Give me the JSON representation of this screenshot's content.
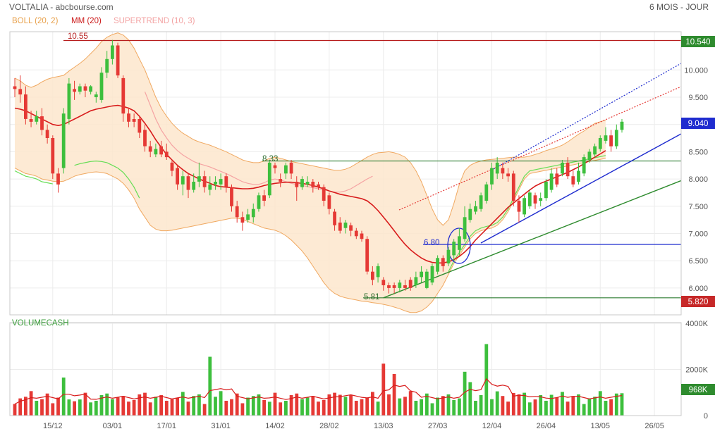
{
  "header": {
    "title": "VOLTALIA - abcbourse.com",
    "period": "6 MOIS - JOUR"
  },
  "legend": {
    "boll": "BOLL (20, 2)",
    "mm": "MM (20)",
    "supertrend": "SUPERTREND (10, 3)",
    "volume": "VOLUMECASH"
  },
  "colors": {
    "up": "#3dbf3d",
    "down": "#e53935",
    "boll_fill": "#fde6cc",
    "boll_line": "#f0a860",
    "mm": "#d81b1b",
    "supertrend_up": "#66dd55",
    "supertrend_down": "#f5a3a3",
    "hline_red": "#b71c1c",
    "hline_green": "#2e7d32",
    "trend_blue": "#1f2ccf",
    "trend_green": "#2e8b2e",
    "badge_green": "#2e8b2e",
    "badge_blue": "#1f2ccf",
    "badge_red": "#c62828"
  },
  "chart_data": [
    {
      "type": "candlestick",
      "x_tick_labels": [
        "15/12",
        "03/01",
        "17/01",
        "31/01",
        "14/02",
        "28/02",
        "13/03",
        "27/03",
        "12/04",
        "26/04",
        "13/05",
        "26/05"
      ],
      "y_tick_labels": [
        "6.000",
        "6.500",
        "7.000",
        "7.500",
        "8.000",
        "8.500",
        "9.000",
        "9.500",
        "10.000"
      ],
      "ylim": [
        5.55,
        10.85
      ],
      "candles": [
        {
          "o": 9.7,
          "c": 9.65,
          "h": 9.85,
          "l": 9.5
        },
        {
          "o": 9.65,
          "c": 9.55,
          "h": 9.9,
          "l": 9.4
        },
        {
          "o": 9.55,
          "c": 9.1,
          "h": 9.7,
          "l": 9.0
        },
        {
          "o": 9.1,
          "c": 9.05,
          "h": 9.25,
          "l": 8.95
        },
        {
          "o": 9.05,
          "c": 9.15,
          "h": 9.25,
          "l": 9.0
        },
        {
          "o": 9.15,
          "c": 8.9,
          "h": 9.3,
          "l": 8.8
        },
        {
          "o": 8.9,
          "c": 8.75,
          "h": 9.0,
          "l": 8.65
        },
        {
          "o": 8.75,
          "c": 8.1,
          "h": 8.8,
          "l": 8.0
        },
        {
          "o": 8.1,
          "c": 7.9,
          "h": 8.2,
          "l": 7.75
        },
        {
          "o": 8.2,
          "c": 9.2,
          "h": 9.3,
          "l": 8.1
        },
        {
          "o": 9.1,
          "c": 9.75,
          "h": 9.85,
          "l": 9.0
        },
        {
          "o": 9.65,
          "c": 9.6,
          "h": 9.8,
          "l": 9.45
        },
        {
          "o": 9.6,
          "c": 9.7,
          "h": 9.75,
          "l": 9.55
        },
        {
          "o": 9.7,
          "c": 9.62,
          "h": 9.75,
          "l": 9.5
        },
        {
          "o": 9.6,
          "c": 9.7,
          "h": 9.72,
          "l": 9.55
        },
        {
          "o": 9.5,
          "c": 9.55,
          "h": 9.6,
          "l": 9.4
        },
        {
          "o": 9.45,
          "c": 9.95,
          "h": 10.05,
          "l": 9.4
        },
        {
          "o": 9.95,
          "c": 10.2,
          "h": 10.35,
          "l": 9.85
        },
        {
          "o": 10.2,
          "c": 10.45,
          "h": 10.55,
          "l": 10.1
        },
        {
          "o": 10.45,
          "c": 9.9,
          "h": 10.5,
          "l": 9.85
        },
        {
          "o": 9.85,
          "c": 9.2,
          "h": 9.9,
          "l": 9.05
        },
        {
          "o": 9.2,
          "c": 9.05,
          "h": 9.3,
          "l": 8.95
        },
        {
          "o": 9.1,
          "c": 9.05,
          "h": 9.2,
          "l": 8.95
        },
        {
          "o": 9.1,
          "c": 8.85,
          "h": 9.15,
          "l": 8.75
        },
        {
          "o": 8.9,
          "c": 8.6,
          "h": 9.0,
          "l": 8.5
        },
        {
          "o": 8.6,
          "c": 8.5,
          "h": 8.7,
          "l": 8.4
        },
        {
          "o": 8.45,
          "c": 8.55,
          "h": 8.65,
          "l": 8.4
        },
        {
          "o": 8.6,
          "c": 8.45,
          "h": 8.7,
          "l": 8.4
        },
        {
          "o": 8.5,
          "c": 8.4,
          "h": 8.65,
          "l": 8.35
        },
        {
          "o": 8.3,
          "c": 8.15,
          "h": 8.35,
          "l": 8.05
        },
        {
          "o": 8.2,
          "c": 7.9,
          "h": 8.25,
          "l": 7.8
        },
        {
          "o": 7.9,
          "c": 8.05,
          "h": 8.15,
          "l": 7.7
        },
        {
          "o": 8.05,
          "c": 7.8,
          "h": 8.1,
          "l": 7.65
        },
        {
          "o": 7.8,
          "c": 7.95,
          "h": 8.1,
          "l": 7.75
        },
        {
          "o": 7.95,
          "c": 8.05,
          "h": 8.3,
          "l": 7.85
        },
        {
          "o": 8.05,
          "c": 7.85,
          "h": 8.15,
          "l": 7.75
        },
        {
          "o": 7.8,
          "c": 7.9,
          "h": 8.05,
          "l": 7.7
        },
        {
          "o": 7.9,
          "c": 7.95,
          "h": 8.05,
          "l": 7.8
        },
        {
          "o": 7.9,
          "c": 8.0,
          "h": 8.1,
          "l": 7.8
        },
        {
          "o": 8.05,
          "c": 7.85,
          "h": 8.1,
          "l": 7.75
        },
        {
          "o": 7.85,
          "c": 7.5,
          "h": 7.9,
          "l": 7.4
        },
        {
          "o": 7.5,
          "c": 7.3,
          "h": 7.6,
          "l": 7.2
        },
        {
          "o": 7.3,
          "c": 7.2,
          "h": 7.4,
          "l": 7.05
        },
        {
          "o": 7.25,
          "c": 7.35,
          "h": 7.45,
          "l": 7.2
        },
        {
          "o": 7.3,
          "c": 7.45,
          "h": 7.55,
          "l": 7.2
        },
        {
          "o": 7.45,
          "c": 7.7,
          "h": 7.75,
          "l": 7.4
        },
        {
          "o": 7.7,
          "c": 7.6,
          "h": 7.8,
          "l": 7.5
        },
        {
          "o": 7.7,
          "c": 8.3,
          "h": 8.35,
          "l": 7.65
        },
        {
          "o": 8.25,
          "c": 8.2,
          "h": 8.3,
          "l": 8.1
        },
        {
          "o": 8.0,
          "c": 7.95,
          "h": 8.1,
          "l": 7.85
        },
        {
          "o": 8.1,
          "c": 8.25,
          "h": 8.3,
          "l": 8.0
        },
        {
          "o": 8.3,
          "c": 8.1,
          "h": 8.35,
          "l": 8.0
        },
        {
          "o": 7.95,
          "c": 7.85,
          "h": 8.05,
          "l": 7.6
        },
        {
          "o": 7.85,
          "c": 8.0,
          "h": 8.05,
          "l": 7.8
        },
        {
          "o": 7.9,
          "c": 7.95,
          "h": 8.05,
          "l": 7.85
        },
        {
          "o": 7.95,
          "c": 7.85,
          "h": 8.0,
          "l": 7.75
        },
        {
          "o": 7.9,
          "c": 7.85,
          "h": 7.95,
          "l": 7.8
        },
        {
          "o": 7.85,
          "c": 7.6,
          "h": 7.9,
          "l": 7.5
        },
        {
          "o": 7.7,
          "c": 7.45,
          "h": 7.75,
          "l": 7.35
        },
        {
          "o": 7.4,
          "c": 7.15,
          "h": 7.45,
          "l": 7.05
        },
        {
          "o": 7.2,
          "c": 7.05,
          "h": 7.3,
          "l": 7.0
        },
        {
          "o": 7.1,
          "c": 7.2,
          "h": 7.25,
          "l": 7.0
        },
        {
          "o": 7.15,
          "c": 7.05,
          "h": 7.2,
          "l": 6.95
        },
        {
          "o": 7.05,
          "c": 6.95,
          "h": 7.1,
          "l": 6.9
        },
        {
          "o": 7.0,
          "c": 6.9,
          "h": 7.05,
          "l": 6.85
        },
        {
          "o": 6.9,
          "c": 6.3,
          "h": 6.95,
          "l": 6.25
        },
        {
          "o": 6.3,
          "c": 6.15,
          "h": 6.4,
          "l": 6.05
        },
        {
          "o": 6.2,
          "c": 6.4,
          "h": 6.45,
          "l": 6.1
        },
        {
          "o": 6.15,
          "c": 6.05,
          "h": 6.2,
          "l": 5.95
        },
        {
          "o": 6.05,
          "c": 6.0,
          "h": 6.1,
          "l": 5.9
        },
        {
          "o": 6.05,
          "c": 6.0,
          "h": 6.1,
          "l": 5.9
        },
        {
          "o": 6.0,
          "c": 6.1,
          "h": 6.15,
          "l": 5.92
        },
        {
          "o": 6.05,
          "c": 6.0,
          "h": 6.15,
          "l": 5.95
        },
        {
          "o": 6.15,
          "c": 6.0,
          "h": 6.2,
          "l": 5.95
        },
        {
          "o": 6.05,
          "c": 6.2,
          "h": 6.3,
          "l": 6.0
        },
        {
          "o": 6.2,
          "c": 6.3,
          "h": 6.4,
          "l": 6.1
        },
        {
          "o": 6.0,
          "c": 6.3,
          "h": 6.35,
          "l": 5.98
        },
        {
          "o": 6.1,
          "c": 6.4,
          "h": 6.45,
          "l": 6.05
        },
        {
          "o": 6.3,
          "c": 6.55,
          "h": 6.6,
          "l": 6.25
        },
        {
          "o": 6.55,
          "c": 6.4,
          "h": 6.6,
          "l": 6.3
        },
        {
          "o": 6.45,
          "c": 6.7,
          "h": 6.75,
          "l": 6.4
        },
        {
          "o": 6.6,
          "c": 6.85,
          "h": 6.9,
          "l": 6.5
        },
        {
          "o": 6.7,
          "c": 6.95,
          "h": 7.1,
          "l": 6.6
        },
        {
          "o": 6.9,
          "c": 7.3,
          "h": 7.5,
          "l": 6.85
        },
        {
          "o": 7.25,
          "c": 7.45,
          "h": 7.55,
          "l": 7.2
        },
        {
          "o": 7.4,
          "c": 7.5,
          "h": 7.6,
          "l": 7.35
        },
        {
          "o": 7.45,
          "c": 7.7,
          "h": 7.75,
          "l": 7.4
        },
        {
          "o": 7.6,
          "c": 7.9,
          "h": 7.95,
          "l": 7.55
        },
        {
          "o": 7.9,
          "c": 8.2,
          "h": 8.3,
          "l": 7.8
        },
        {
          "o": 8.1,
          "c": 8.3,
          "h": 8.4,
          "l": 8.0
        },
        {
          "o": 8.2,
          "c": 8.1,
          "h": 8.3,
          "l": 8.0
        },
        {
          "o": 8.1,
          "c": 8.05,
          "h": 8.2,
          "l": 7.95
        },
        {
          "o": 8.1,
          "c": 7.6,
          "h": 8.15,
          "l": 7.5
        },
        {
          "o": 7.6,
          "c": 7.4,
          "h": 7.7,
          "l": 7.2
        },
        {
          "o": 7.35,
          "c": 7.65,
          "h": 7.7,
          "l": 7.3
        },
        {
          "o": 7.5,
          "c": 7.75,
          "h": 7.8,
          "l": 7.45
        },
        {
          "o": 7.7,
          "c": 7.55,
          "h": 7.75,
          "l": 7.45
        },
        {
          "o": 7.6,
          "c": 7.65,
          "h": 7.75,
          "l": 7.5
        },
        {
          "o": 7.65,
          "c": 7.95,
          "h": 8.0,
          "l": 7.6
        },
        {
          "o": 7.8,
          "c": 8.1,
          "h": 8.2,
          "l": 7.75
        },
        {
          "o": 8.1,
          "c": 7.9,
          "h": 8.2,
          "l": 7.85
        },
        {
          "o": 8.1,
          "c": 8.3,
          "h": 8.35,
          "l": 8.05
        },
        {
          "o": 8.3,
          "c": 8.05,
          "h": 8.4,
          "l": 8.0
        },
        {
          "o": 8.05,
          "c": 7.9,
          "h": 8.15,
          "l": 7.85
        },
        {
          "o": 7.95,
          "c": 8.15,
          "h": 8.3,
          "l": 7.9
        },
        {
          "o": 8.1,
          "c": 8.4,
          "h": 8.45,
          "l": 8.05
        },
        {
          "o": 8.35,
          "c": 8.5,
          "h": 8.55,
          "l": 8.3
        },
        {
          "o": 8.45,
          "c": 8.6,
          "h": 8.65,
          "l": 8.4
        },
        {
          "o": 8.55,
          "c": 8.75,
          "h": 8.8,
          "l": 8.5
        },
        {
          "o": 8.7,
          "c": 8.8,
          "h": 8.95,
          "l": 8.65
        },
        {
          "o": 8.8,
          "c": 8.6,
          "h": 8.9,
          "l": 8.5
        },
        {
          "o": 8.6,
          "c": 8.9,
          "h": 9.0,
          "l": 8.55
        },
        {
          "o": 8.9,
          "c": 9.05,
          "h": 9.1,
          "l": 8.85
        }
      ],
      "bollinger_upper": [
        9.85,
        9.8,
        9.72,
        9.68,
        9.72,
        9.78,
        9.83,
        9.86,
        9.88,
        9.9,
        9.98,
        10.05,
        10.12,
        10.2,
        10.3,
        10.4,
        10.52,
        10.6,
        10.65,
        10.68,
        10.64,
        10.55,
        10.4,
        10.2,
        10.0,
        9.75,
        9.5,
        9.3,
        9.15,
        9.02,
        8.92,
        8.84,
        8.78,
        8.72,
        8.68,
        8.65,
        8.62,
        8.58,
        8.54,
        8.5,
        8.45,
        8.4,
        8.35,
        8.32,
        8.3,
        8.3,
        8.33,
        8.38,
        8.4,
        8.38,
        8.35,
        8.32,
        8.3,
        8.28,
        8.26,
        8.24,
        8.22,
        8.2,
        8.18,
        8.16,
        8.16,
        8.18,
        8.22,
        8.28,
        8.34,
        8.4,
        8.45,
        8.48,
        8.49,
        8.5,
        8.48,
        8.45,
        8.4,
        8.3,
        8.15,
        7.95,
        7.7,
        7.45,
        7.25,
        7.15,
        7.25,
        7.55,
        7.9,
        8.15,
        8.25,
        8.3,
        8.33,
        8.35,
        8.36,
        8.37,
        8.38,
        8.39,
        8.4,
        8.4,
        8.4,
        8.42,
        8.45,
        8.48,
        8.52,
        8.55,
        8.58,
        8.62,
        8.68,
        8.75,
        8.82,
        8.88,
        8.95,
        9.02,
        9.05,
        9.08
      ],
      "bollinger_lower": [
        8.2,
        8.15,
        8.1,
        8.08,
        8.05,
        8.0,
        7.98,
        7.96,
        7.95,
        7.96,
        8.0,
        8.05,
        8.08,
        8.1,
        8.12,
        8.13,
        8.12,
        8.1,
        8.05,
        8.0,
        7.92,
        7.8,
        7.65,
        7.45,
        7.3,
        7.15,
        7.08,
        7.05,
        7.05,
        7.06,
        7.08,
        7.1,
        7.12,
        7.14,
        7.16,
        7.18,
        7.2,
        7.22,
        7.24,
        7.26,
        7.28,
        7.28,
        7.26,
        7.22,
        7.18,
        7.14,
        7.1,
        7.08,
        7.06,
        7.02,
        6.96,
        6.88,
        6.78,
        6.68,
        6.55,
        6.4,
        6.25,
        6.1,
        5.98,
        5.9,
        5.85,
        5.82,
        5.8,
        5.78,
        5.76,
        5.75,
        5.73,
        5.72,
        5.7,
        5.68,
        5.65,
        5.62,
        5.58,
        5.55,
        5.55,
        5.58,
        5.65,
        5.75,
        5.9,
        6.05,
        6.25,
        6.45,
        6.6,
        6.75,
        6.9,
        7.0,
        7.05,
        7.08,
        7.1,
        7.15,
        7.25,
        7.4,
        7.6,
        7.8,
        8.0,
        8.1,
        8.12,
        8.14,
        8.16,
        8.18,
        8.2,
        8.22,
        8.24,
        8.26,
        8.28,
        8.3,
        8.32,
        8.34,
        8.36,
        8.38
      ],
      "ma20": [
        9.3,
        9.28,
        9.25,
        9.2,
        9.15,
        9.1,
        9.05,
        9.0,
        8.98,
        9.0,
        9.05,
        9.1,
        9.15,
        9.2,
        9.25,
        9.28,
        9.3,
        9.32,
        9.34,
        9.35,
        9.33,
        9.3,
        9.25,
        9.15,
        9.02,
        8.88,
        8.72,
        8.58,
        8.45,
        8.35,
        8.25,
        8.17,
        8.1,
        8.05,
        8.0,
        7.96,
        7.92,
        7.88,
        7.86,
        7.85,
        7.84,
        7.83,
        7.82,
        7.82,
        7.83,
        7.85,
        7.88,
        7.9,
        7.92,
        7.93,
        7.94,
        7.94,
        7.93,
        7.92,
        7.9,
        7.88,
        7.85,
        7.82,
        7.78,
        7.75,
        7.72,
        7.7,
        7.68,
        7.66,
        7.64,
        7.6,
        7.52,
        7.42,
        7.3,
        7.18,
        7.05,
        6.92,
        6.8,
        6.7,
        6.62,
        6.55,
        6.5,
        6.47,
        6.46,
        6.46,
        6.48,
        6.52,
        6.58,
        6.66,
        6.76,
        6.88,
        6.98,
        7.08,
        7.18,
        7.28,
        7.38,
        7.48,
        7.56,
        7.64,
        7.72,
        7.8,
        7.87,
        7.92,
        7.96,
        8.0,
        8.04,
        8.08,
        8.12,
        8.17,
        8.22,
        8.28,
        8.34,
        8.4,
        8.46,
        8.52
      ]
    },
    {
      "type": "bar",
      "title": "VOLUMECASH",
      "y_tick_labels": [
        "0",
        "2000K",
        "4000K"
      ],
      "ylim": [
        0,
        4000
      ],
      "current_label": "968K"
    }
  ],
  "annotations": {
    "hline_1055": "10.55",
    "hline_833": "8.33",
    "hline_680": "6.80",
    "hline_581": "5.81",
    "badge_top": "10.540",
    "badge_mid": "9.040",
    "badge_bottom": "5.820"
  }
}
